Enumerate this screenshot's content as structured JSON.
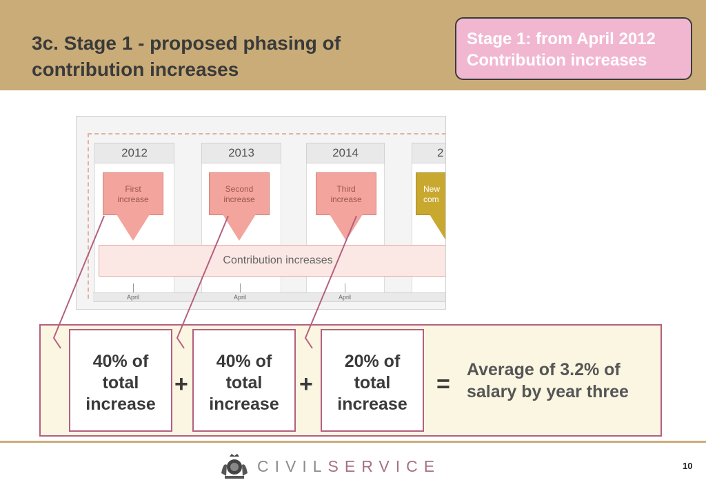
{
  "header": {
    "title": "3c. Stage 1 - proposed phasing of contribution increases",
    "callout_line1": "Stage 1: from April 2012",
    "callout_line2": "Contribution increases"
  },
  "timeline": {
    "years": [
      "2012",
      "2013",
      "2014",
      "2"
    ],
    "increase_boxes": [
      {
        "line1": "First",
        "line2": "increase"
      },
      {
        "line1": "Second",
        "line2": "increase"
      },
      {
        "line1": "Third",
        "line2": "increase"
      },
      {
        "line1": "New",
        "line2": "com"
      }
    ],
    "contribution_label": "Contribution increases",
    "month_labels": [
      "April",
      "April",
      "April"
    ]
  },
  "summary": {
    "boxes": [
      {
        "line1": "40% of",
        "line2": "total",
        "line3": "increase"
      },
      {
        "line1": "40% of",
        "line2": "total",
        "line3": "increase"
      },
      {
        "line1": "20% of",
        "line2": "total",
        "line3": "increase"
      }
    ],
    "plus": "+",
    "equals": "=",
    "result_line1": "Average of 3.2% of",
    "result_line2": "salary by year three"
  },
  "footer": {
    "brand_civil": "CIVIL",
    "brand_service": "SERVICE",
    "page_number": "10"
  },
  "colors": {
    "header_band": "#c9ac78",
    "callout_fill": "#f1b7d1",
    "increase_box": "#f3a49c",
    "new_box": "#c9a830",
    "summary_border": "#b45f80",
    "summary_fill": "#faf6e2"
  },
  "icons": {
    "crest": "royal-crest-icon"
  }
}
